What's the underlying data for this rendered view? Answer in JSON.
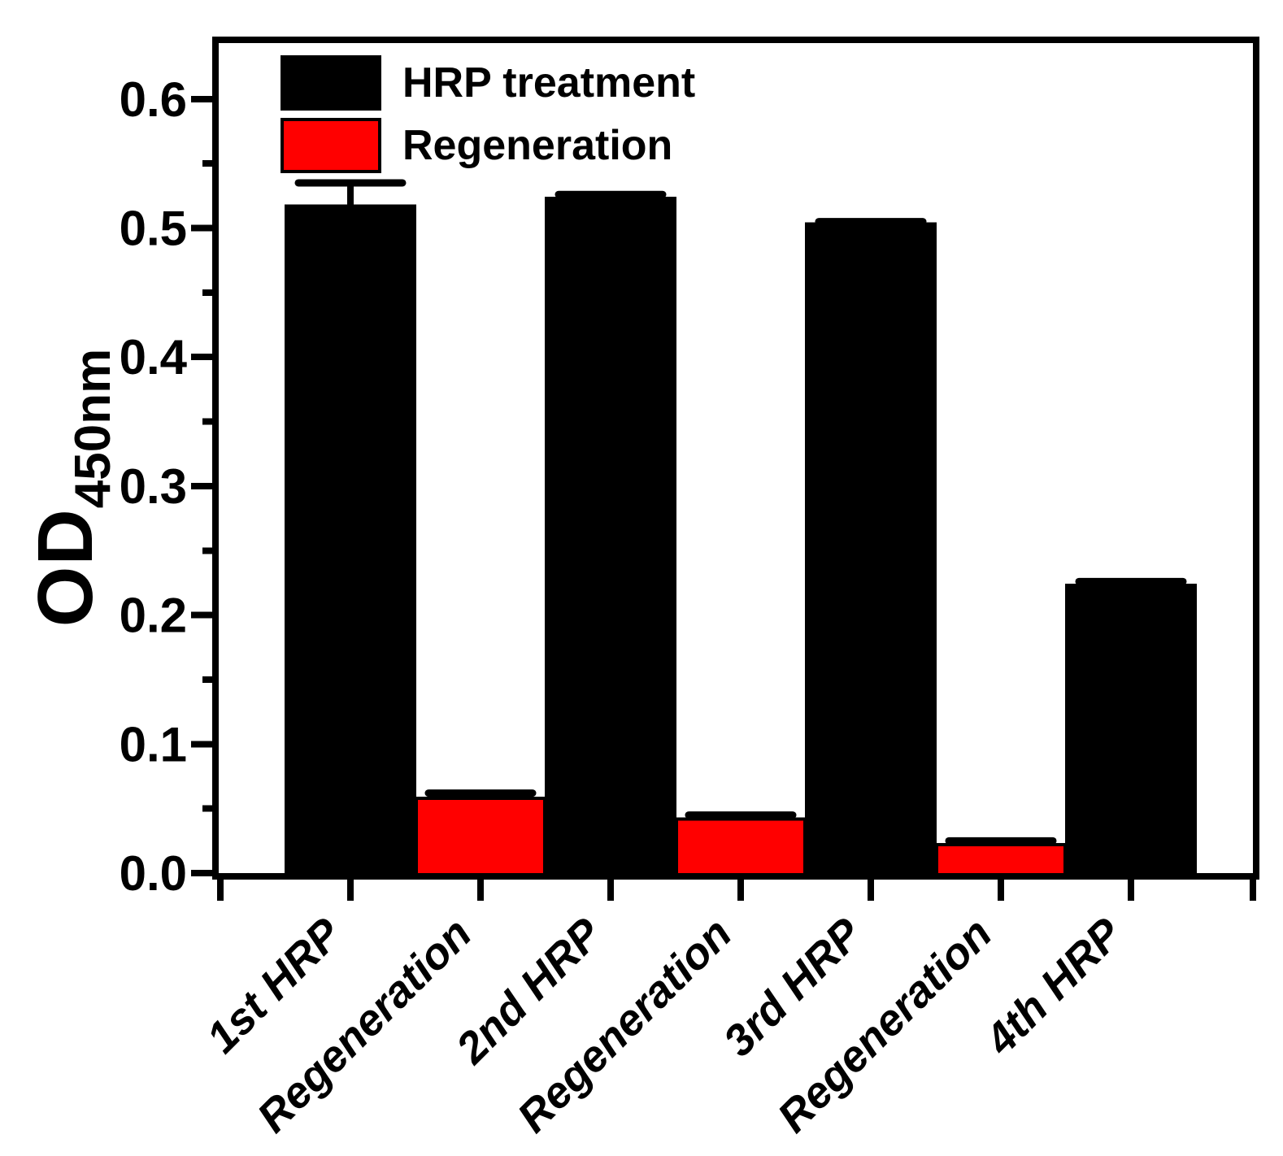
{
  "figure": {
    "background": "#FFFFFF",
    "frame_color": "#000000"
  },
  "y_axis": {
    "title_main": "OD",
    "title_sub": "450nm",
    "tick_labels": [
      "0.0",
      "0.1",
      "0.2",
      "0.3",
      "0.4",
      "0.5",
      "0.6"
    ]
  },
  "legend": {
    "items": [
      {
        "label": "HRP treatment",
        "color": "#000000"
      },
      {
        "label": "Regeneration",
        "color": "#FF0000"
      }
    ]
  },
  "chart_data": {
    "type": "bar",
    "title": "",
    "xlabel": "",
    "ylabel": "OD_450nm",
    "categories": [
      "1st HRP",
      "Regeneration",
      "2nd HRP",
      "Regeneration",
      "3rd HRP",
      "Regeneration",
      "4th HRP"
    ],
    "series": [
      {
        "name": "HRP treatment",
        "color": "#000000",
        "points": [
          {
            "category_index": 0,
            "value": 0.517,
            "error": 0.018
          },
          {
            "category_index": 2,
            "value": 0.523,
            "error": 0.003
          },
          {
            "category_index": 4,
            "value": 0.503,
            "error": 0.002
          },
          {
            "category_index": 6,
            "value": 0.223,
            "error": 0.003
          }
        ]
      },
      {
        "name": "Regeneration",
        "color": "#FF0000",
        "points": [
          {
            "category_index": 1,
            "value": 0.058,
            "error": 0.004
          },
          {
            "category_index": 3,
            "value": 0.042,
            "error": 0.003
          },
          {
            "category_index": 5,
            "value": 0.022,
            "error": 0.003
          }
        ]
      }
    ],
    "ylim": [
      0.0,
      0.648
    ],
    "yticks": [
      0.0,
      0.1,
      0.2,
      0.3,
      0.4,
      0.5,
      0.6
    ],
    "ytick_labels": [
      "0.0",
      "0.1",
      "0.2",
      "0.3",
      "0.4",
      "0.5",
      "0.6"
    ],
    "minor_ytick_step": 0.05,
    "grid": false,
    "legend_position": "top-left-inside",
    "error_bars": "upper",
    "bar_alignment": "adjacent"
  }
}
